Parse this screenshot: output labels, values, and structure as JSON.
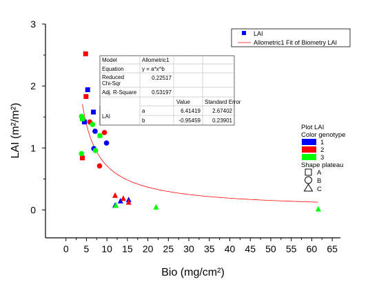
{
  "chart_data": {
    "type": "scatter",
    "xlabel": "Bio (mg/cm²)",
    "ylabel": "LAI (m²/m²)",
    "xlim": [
      -5,
      67
    ],
    "ylim": [
      -0.45,
      3
    ],
    "x_ticks": [
      "0",
      "5",
      "10",
      "15",
      "20",
      "25",
      "30",
      "35",
      "40",
      "45",
      "50",
      "55",
      "60",
      "65"
    ],
    "y_ticks": [
      "0",
      "1",
      "2",
      "3"
    ],
    "colors": {
      "1": "#0000ff",
      "2": "#ff0000",
      "3": "#00ff00",
      "fit": "#ff0000"
    },
    "points": [
      {
        "x": 4.5,
        "y": 1.42,
        "genotype": "1",
        "plateau": "A"
      },
      {
        "x": 5.3,
        "y": 1.94,
        "genotype": "1",
        "plateau": "A"
      },
      {
        "x": 6.7,
        "y": 1.58,
        "genotype": "1",
        "plateau": "A"
      },
      {
        "x": 4.8,
        "y": 2.52,
        "genotype": "2",
        "plateau": "A"
      },
      {
        "x": 4.9,
        "y": 1.83,
        "genotype": "2",
        "plateau": "A"
      },
      {
        "x": 4.0,
        "y": 0.84,
        "genotype": "2",
        "plateau": "A"
      },
      {
        "x": 4.0,
        "y": 1.47,
        "genotype": "3",
        "plateau": "A"
      },
      {
        "x": 8.3,
        "y": 1.2,
        "genotype": "3",
        "plateau": "A"
      },
      {
        "x": 7.1,
        "y": 1.27,
        "genotype": "1",
        "plateau": "B"
      },
      {
        "x": 9.9,
        "y": 1.08,
        "genotype": "1",
        "plateau": "B"
      },
      {
        "x": 6.8,
        "y": 0.99,
        "genotype": "1",
        "plateau": "B"
      },
      {
        "x": 5.8,
        "y": 1.42,
        "genotype": "2",
        "plateau": "B"
      },
      {
        "x": 9.4,
        "y": 1.25,
        "genotype": "2",
        "plateau": "B"
      },
      {
        "x": 8.2,
        "y": 0.71,
        "genotype": "2",
        "plateau": "B"
      },
      {
        "x": 3.8,
        "y": 1.51,
        "genotype": "3",
        "plateau": "B"
      },
      {
        "x": 6.5,
        "y": 1.38,
        "genotype": "3",
        "plateau": "B"
      },
      {
        "x": 3.8,
        "y": 0.91,
        "genotype": "3",
        "plateau": "B"
      },
      {
        "x": 7.2,
        "y": 0.96,
        "genotype": "3",
        "plateau": "B"
      },
      {
        "x": 13.3,
        "y": 0.15,
        "genotype": "1",
        "plateau": "C"
      },
      {
        "x": 15.3,
        "y": 0.17,
        "genotype": "1",
        "plateau": "C"
      },
      {
        "x": 12.0,
        "y": 0.08,
        "genotype": "1",
        "plateau": "C"
      },
      {
        "x": 12.0,
        "y": 0.24,
        "genotype": "2",
        "plateau": "C"
      },
      {
        "x": 14.0,
        "y": 0.19,
        "genotype": "2",
        "plateau": "C"
      },
      {
        "x": 15.3,
        "y": 0.13,
        "genotype": "2",
        "plateau": "C"
      },
      {
        "x": 12.2,
        "y": 0.08,
        "genotype": "3",
        "plateau": "C"
      },
      {
        "x": 22.0,
        "y": 0.05,
        "genotype": "3",
        "plateau": "C"
      },
      {
        "x": 61.6,
        "y": 0.02,
        "genotype": "3",
        "plateau": "C"
      }
    ],
    "fit": {
      "model": "Allometric1",
      "equation": "y = a*x^b",
      "a": 6.41419,
      "b": -0.95459,
      "x_range": [
        4,
        61.6
      ]
    }
  },
  "legend_top": {
    "marker_label": "LAI",
    "line_label": "Allometric1 Fit of Biometry LAI"
  },
  "stats_table": {
    "model_label": "Model",
    "model_value": "Allometric1",
    "equation_label": "Equation",
    "equation_value": "y = a*x^b",
    "chisqr_label_1": "Reduced",
    "chisqr_label_2": "Chi-Sqr",
    "chisqr_value": "0.22517",
    "r2_label": "Adj. R-Square",
    "r2_value": "0.53197",
    "value_header": "Value",
    "se_header": "Standard Error",
    "param_group": "LAI",
    "rows": [
      {
        "param": "a",
        "value": "6.41419",
        "se": "2.67402"
      },
      {
        "param": "b",
        "value": "-0.95459",
        "se": "0.23901"
      }
    ]
  },
  "legend_groups": {
    "title": "Plot LAI",
    "color_title": "Color  genotype",
    "color_items": [
      "1",
      "2",
      "3"
    ],
    "shape_title": "Shape  plateau",
    "shape_items": [
      "A",
      "B",
      "C"
    ]
  }
}
